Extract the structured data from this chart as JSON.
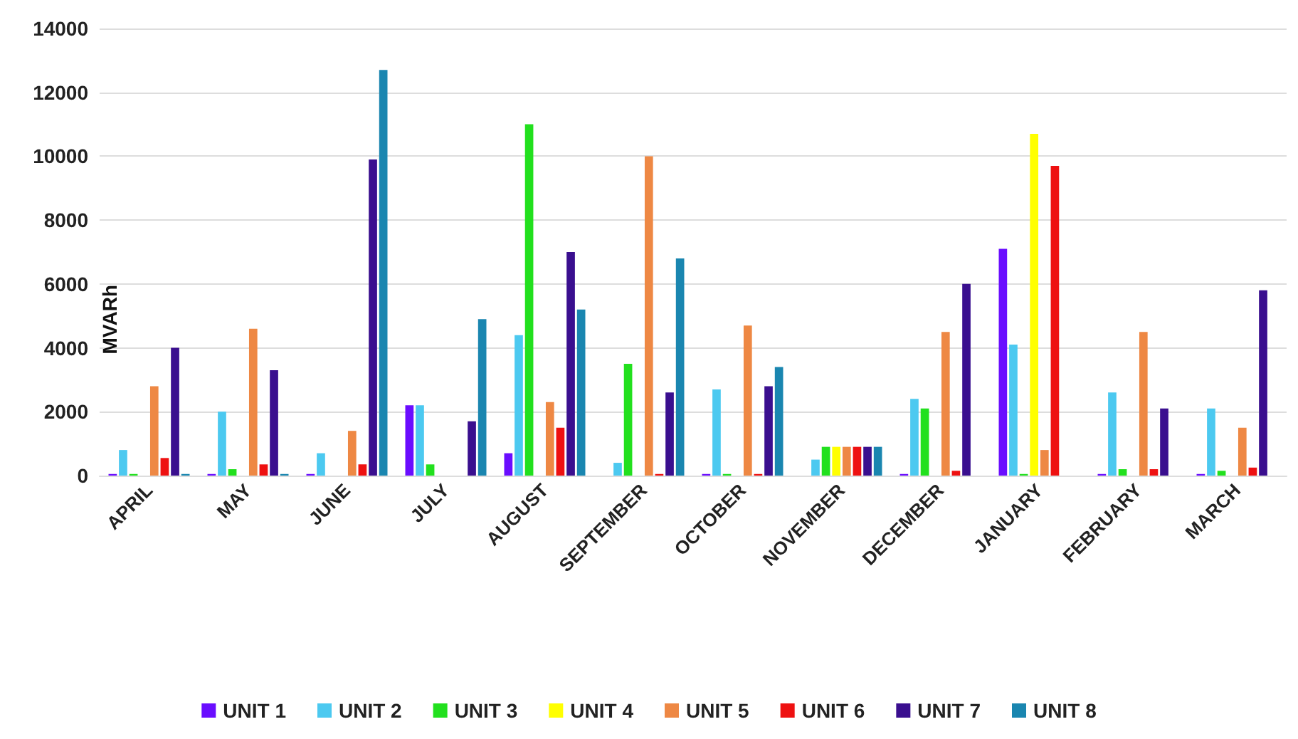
{
  "chart_data": {
    "type": "bar",
    "ylabel": "MVARh",
    "categories": [
      "APRIL",
      "MAY",
      "JUNE",
      "JULY",
      "AUGUST",
      "SEPTEMBER",
      "OCTOBER",
      "NOVEMBER",
      "DECEMBER",
      "JANUARY",
      "FEBRUARY",
      "MARCH"
    ],
    "series": [
      {
        "name": "UNIT 1",
        "color": "#6a0dff",
        "values": [
          50,
          50,
          50,
          2200,
          700,
          0,
          50,
          0,
          50,
          7100,
          50,
          50
        ]
      },
      {
        "name": "UNIT 2",
        "color": "#4cc9f0",
        "values": [
          800,
          2000,
          700,
          2200,
          4400,
          400,
          2700,
          500,
          2400,
          4100,
          2600,
          2100
        ]
      },
      {
        "name": "UNIT 3",
        "color": "#22e01e",
        "values": [
          50,
          200,
          0,
          350,
          11000,
          3500,
          50,
          900,
          2100,
          50,
          200,
          150
        ]
      },
      {
        "name": "UNIT 4",
        "color": "#ffff00",
        "values": [
          0,
          0,
          0,
          0,
          0,
          0,
          0,
          900,
          0,
          10700,
          0,
          0
        ]
      },
      {
        "name": "UNIT 5",
        "color": "#ee8844",
        "values": [
          2800,
          4600,
          1400,
          0,
          2300,
          10000,
          4700,
          900,
          4500,
          800,
          4500,
          1500
        ]
      },
      {
        "name": "UNIT 6",
        "color": "#ee1111",
        "values": [
          550,
          350,
          350,
          0,
          1500,
          50,
          50,
          900,
          150,
          9700,
          200,
          250
        ]
      },
      {
        "name": "UNIT 7",
        "color": "#3a0f8f",
        "values": [
          4000,
          3300,
          9900,
          1700,
          7000,
          2600,
          2800,
          900,
          6000,
          0,
          2100,
          5800
        ]
      },
      {
        "name": "UNIT 8",
        "color": "#1a86b0",
        "values": [
          50,
          50,
          12700,
          4900,
          5200,
          6800,
          3400,
          900,
          0,
          0,
          0,
          0
        ]
      }
    ],
    "ylim": [
      0,
      14000
    ],
    "yticks": [
      0,
      2000,
      4000,
      6000,
      8000,
      10000,
      12000,
      14000
    ],
    "grid": "y",
    "legend": "bottom"
  }
}
